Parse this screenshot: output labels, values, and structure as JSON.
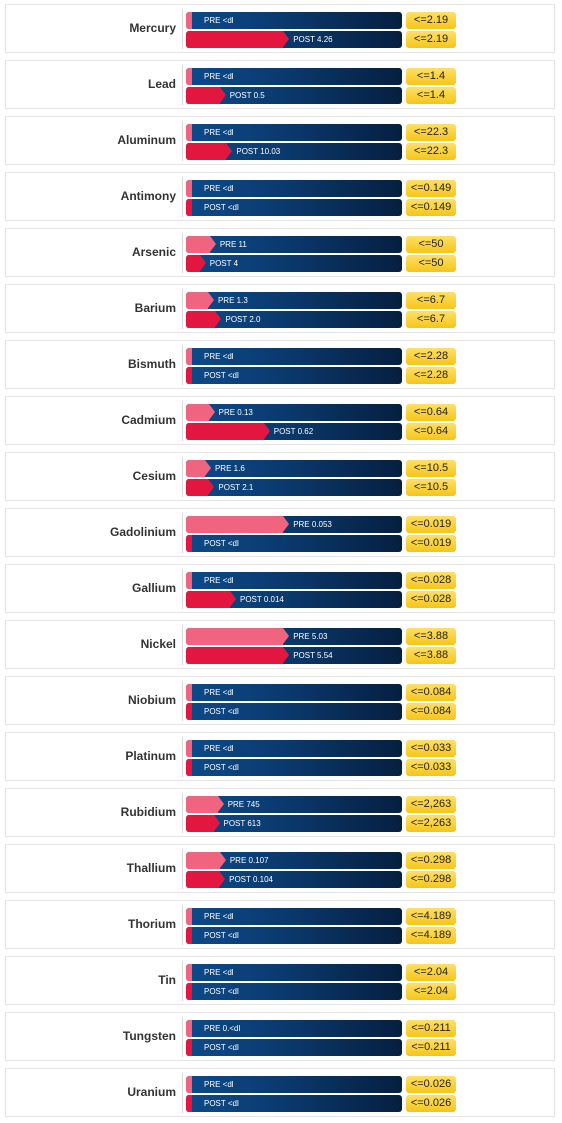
{
  "chart_data": {
    "type": "bar",
    "orientation": "horizontal",
    "series": [
      {
        "key": "pre"
      },
      {
        "key": "post"
      }
    ],
    "rows": [
      {
        "element": "Mercury",
        "pre_label": "PRE <dl",
        "post_label": "POST 4.26",
        "ref_label": "<=2.19",
        "pre_value": 0,
        "post_value": 4.26,
        "ref_value": 2.19
      },
      {
        "element": "Lead",
        "pre_label": "PRE <dl",
        "post_label": "POST 0.5",
        "ref_label": "<=1.4",
        "pre_value": 0,
        "post_value": 0.5,
        "ref_value": 1.4
      },
      {
        "element": "Aluminum",
        "pre_label": "PRE <dl",
        "post_label": "POST 10.03",
        "ref_label": "<=22.3",
        "pre_value": 0,
        "post_value": 10.03,
        "ref_value": 22.3
      },
      {
        "element": "Antimony",
        "pre_label": "PRE <dl",
        "post_label": "POST <dl",
        "ref_label": "<=0.149",
        "pre_value": 0,
        "post_value": 0,
        "ref_value": 0.149
      },
      {
        "element": "Arsenic",
        "pre_label": "PRE 11",
        "post_label": "POST 4",
        "ref_label": "<=50",
        "pre_value": 11,
        "post_value": 4,
        "ref_value": 50
      },
      {
        "element": "Barium",
        "pre_label": "PRE 1.3",
        "post_label": "POST 2.0",
        "ref_label": "<=6.7",
        "pre_value": 1.3,
        "post_value": 2.0,
        "ref_value": 6.7
      },
      {
        "element": "Bismuth",
        "pre_label": "PRE <dl",
        "post_label": "POST <dl",
        "ref_label": "<=2.28",
        "pre_value": 0,
        "post_value": 0,
        "ref_value": 2.28
      },
      {
        "element": "Cadmium",
        "pre_label": "PRE 0.13",
        "post_label": "POST 0.62",
        "ref_label": "<=0.64",
        "pre_value": 0.13,
        "post_value": 0.62,
        "ref_value": 0.64
      },
      {
        "element": "Cesium",
        "pre_label": "PRE 1.6",
        "post_label": "POST 2.1",
        "ref_label": "<=10.5",
        "pre_value": 1.6,
        "post_value": 2.1,
        "ref_value": 10.5
      },
      {
        "element": "Gadolinium",
        "pre_label": "PRE 0.053",
        "post_label": "POST <dl",
        "ref_label": "<=0.019",
        "pre_value": 0.053,
        "post_value": 0,
        "ref_value": 0.019
      },
      {
        "element": "Gallium",
        "pre_label": "PRE <dl",
        "post_label": "POST 0.014",
        "ref_label": "<=0.028",
        "pre_value": 0,
        "post_value": 0.014,
        "ref_value": 0.028
      },
      {
        "element": "Nickel",
        "pre_label": "PRE 5.03",
        "post_label": "POST 5.54",
        "ref_label": "<=3.88",
        "pre_value": 5.03,
        "post_value": 5.54,
        "ref_value": 3.88
      },
      {
        "element": "Niobium",
        "pre_label": "PRE <dl",
        "post_label": "POST <dl",
        "ref_label": "<=0.084",
        "pre_value": 0,
        "post_value": 0,
        "ref_value": 0.084
      },
      {
        "element": "Platinum",
        "pre_label": "PRE <dl",
        "post_label": "POST <dl",
        "ref_label": "<=0.033",
        "pre_value": 0,
        "post_value": 0,
        "ref_value": 0.033
      },
      {
        "element": "Rubidium",
        "pre_label": "PRE 745",
        "post_label": "POST 613",
        "ref_label": "<=2,263",
        "pre_value": 745,
        "post_value": 613,
        "ref_value": 2263
      },
      {
        "element": "Thallium",
        "pre_label": "PRE 0.107",
        "post_label": "POST 0.104",
        "ref_label": "<=0.298",
        "pre_value": 0.107,
        "post_value": 0.104,
        "ref_value": 0.298
      },
      {
        "element": "Thorium",
        "pre_label": "PRE <dl",
        "post_label": "POST <dl",
        "ref_label": "<=4.189",
        "pre_value": 0,
        "post_value": 0,
        "ref_value": 4.189
      },
      {
        "element": "Tin",
        "pre_label": "PRE <dl",
        "post_label": "POST <dl",
        "ref_label": "<=2.04",
        "pre_value": 0,
        "post_value": 0,
        "ref_value": 2.04
      },
      {
        "element": "Tungsten",
        "pre_label": "PRE 0.<dl",
        "post_label": "POST <dl",
        "ref_label": "<=0.211",
        "pre_value": 0,
        "post_value": 0,
        "ref_value": 0.211
      },
      {
        "element": "Uranium",
        "pre_label": "PRE <dl",
        "post_label": "POST <dl",
        "ref_label": "<=0.026",
        "pre_value": 0,
        "post_value": 0,
        "ref_value": 0.026
      }
    ]
  },
  "colors": {
    "pre_fill": "#f06480",
    "post_fill": "#e3163f",
    "bar_track_start": "#0d4a8a",
    "bar_track_end": "#061f40",
    "reference_badge": "#f5c518"
  }
}
